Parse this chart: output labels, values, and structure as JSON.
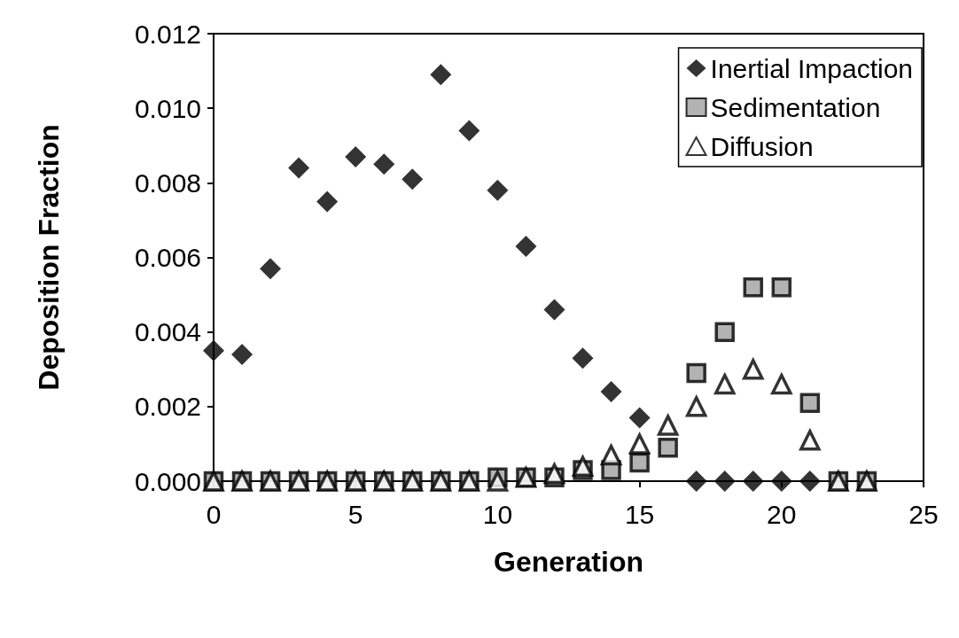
{
  "chart_data": {
    "type": "scatter",
    "xlabel": "Generation",
    "ylabel": "Deposition Fraction",
    "xlim": [
      0,
      25
    ],
    "xticks": [
      0,
      5,
      10,
      15,
      20,
      25
    ],
    "ylim": [
      0,
      0.012
    ],
    "yticks": [
      {
        "value": 0,
        "label": "0.000"
      },
      {
        "value": 0.002,
        "label": "0.002"
      },
      {
        "value": 0.004,
        "label": "0.004"
      },
      {
        "value": 0.006,
        "label": "0.006"
      },
      {
        "value": 0.008,
        "label": "0.008"
      },
      {
        "value": 0.01,
        "label": "0.010"
      },
      {
        "value": 0.012,
        "label": "0.012"
      }
    ],
    "grid": false,
    "legend": "top right",
    "x": [
      0,
      1,
      2,
      3,
      4,
      5,
      6,
      7,
      8,
      9,
      10,
      11,
      12,
      13,
      14,
      15,
      16,
      17,
      18,
      19,
      20,
      21,
      22,
      23
    ],
    "series": [
      {
        "name": "Inertial Impaction",
        "color": "#000000",
        "marker": "diamond",
        "x": [
          0,
          1,
          2,
          3,
          4,
          5,
          6,
          7,
          8,
          9,
          10,
          11,
          12,
          13,
          14,
          15,
          17,
          18,
          19,
          20,
          21
        ],
        "values": [
          0.0035,
          0.0034,
          0.0057,
          0.0084,
          0.0075,
          0.0087,
          0.0085,
          0.0081,
          0.0109,
          0.0094,
          0.0078,
          0.0063,
          0.0046,
          0.0033,
          0.0024,
          0.0017,
          0,
          0,
          0,
          0,
          0
        ]
      },
      {
        "name": "Sedimentation",
        "color": "#a0a0a0",
        "marker": "square",
        "values": [
          0,
          0,
          0,
          0,
          0,
          0,
          0,
          0,
          0,
          0,
          0.0001,
          0.0001,
          0.0001,
          0.0003,
          0.0003,
          0.0005,
          0.0009,
          0.0029,
          0.004,
          0.0052,
          0.0052,
          0.0021,
          0,
          0
        ]
      },
      {
        "name": "Diffusion",
        "color": "#000000",
        "marker": "triangle",
        "values": [
          0,
          0,
          0,
          0,
          0,
          0,
          0,
          0,
          0,
          0,
          0,
          0.0001,
          0.0002,
          0.0004,
          0.0007,
          0.001,
          0.0015,
          0.002,
          0.0026,
          0.003,
          0.0026,
          0.0011,
          0,
          0
        ]
      }
    ]
  }
}
